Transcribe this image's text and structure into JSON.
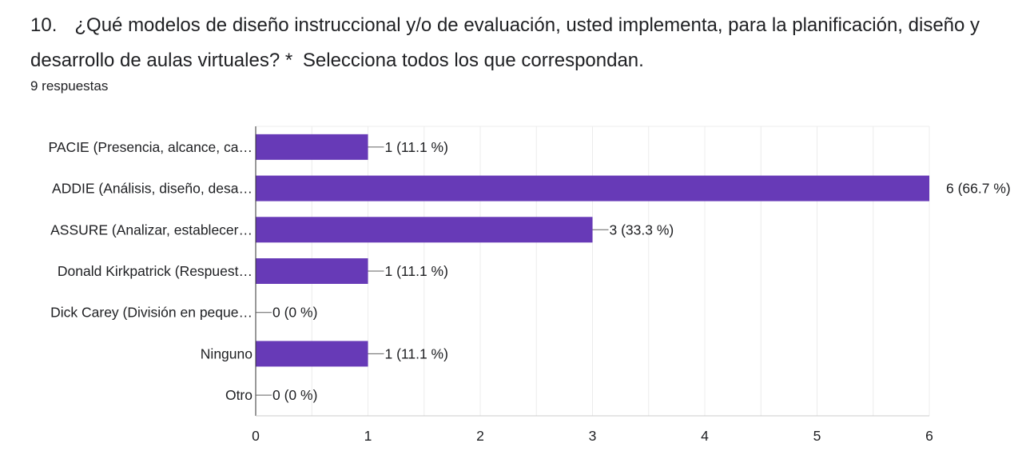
{
  "question": {
    "number": "10.",
    "text": "¿Qué modelos de diseño instruccional y/o de evaluación, usted implementa, para la planificación, diseño y desarrollo de aulas virtuales?",
    "required_mark": "*",
    "instruction": "Selecciona todos los que correspondan.",
    "response_count": "9 respuestas"
  },
  "chart_data": {
    "type": "bar",
    "orientation": "horizontal",
    "categories": [
      "PACIE (Presencia, alcance, ca…",
      "ADDIE (Análisis, diseño, desa…",
      "ASSURE (Analizar, establecer…",
      "Donald Kirkpatrick (Respuest…",
      "Dick Carey (División en peque…",
      "Ninguno",
      "Otro"
    ],
    "values": [
      1,
      6,
      3,
      1,
      0,
      1,
      0
    ],
    "value_labels": [
      "1 (11.1 %)",
      "6 (66.7 %)",
      "3 (33.3 %)",
      "1 (11.1 %)",
      "0 (0 %)",
      "1 (11.1 %)",
      "0 (0 %)"
    ],
    "xlim": [
      0,
      6
    ],
    "xticks": [
      0,
      1,
      2,
      3,
      4,
      5,
      6
    ],
    "grid": true,
    "bar_color": "#673ab7"
  }
}
